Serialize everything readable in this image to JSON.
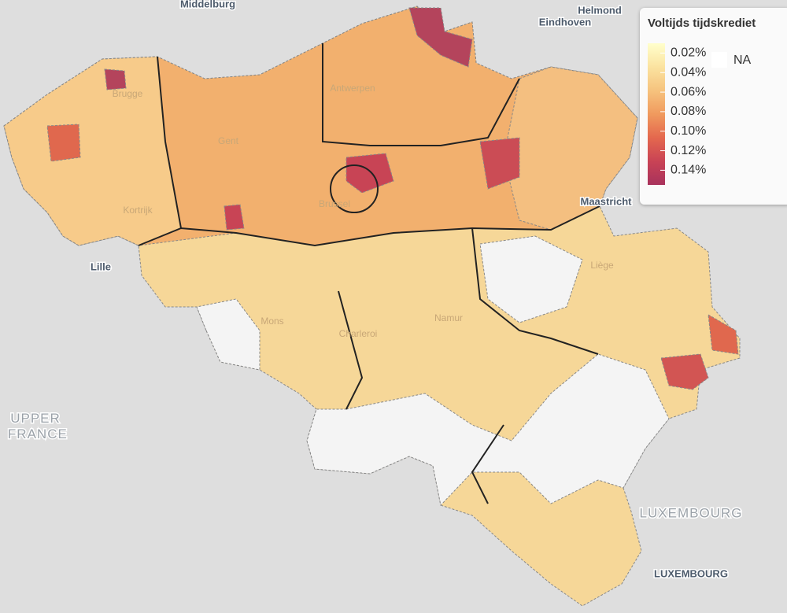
{
  "map": {
    "places": [
      "Middelburg",
      "Helmond",
      "Eindhoven",
      "Brugge",
      "Antwerpen",
      "Gent",
      "Kortrijk",
      "Brussel",
      "Lille",
      "Mons",
      "Charleroi",
      "Namur",
      "Liège",
      "Maastricht",
      "UPPER FRANCE",
      "LUXEMBOURG",
      "LUXEMBOURG"
    ],
    "legend": {
      "title": "Voltijds tijdskrediet",
      "lim": [
        0.01,
        0.155
      ],
      "colors": [
        "#ffffcc",
        "#fbe3a0",
        "#f6c37e",
        "#f09a5e",
        "#e4684e",
        "#c94355",
        "#a8325c"
      ],
      "ticks": [
        {
          "value": 0.02,
          "label": "0.02%"
        },
        {
          "value": 0.04,
          "label": "0.04%"
        },
        {
          "value": 0.06,
          "label": "0.06%"
        },
        {
          "value": 0.08,
          "label": "0.08%"
        },
        {
          "value": 0.1,
          "label": "0.10%"
        },
        {
          "value": 0.12,
          "label": "0.12%"
        },
        {
          "value": 0.14,
          "label": "0.14%"
        }
      ],
      "na_label": "NA"
    }
  }
}
